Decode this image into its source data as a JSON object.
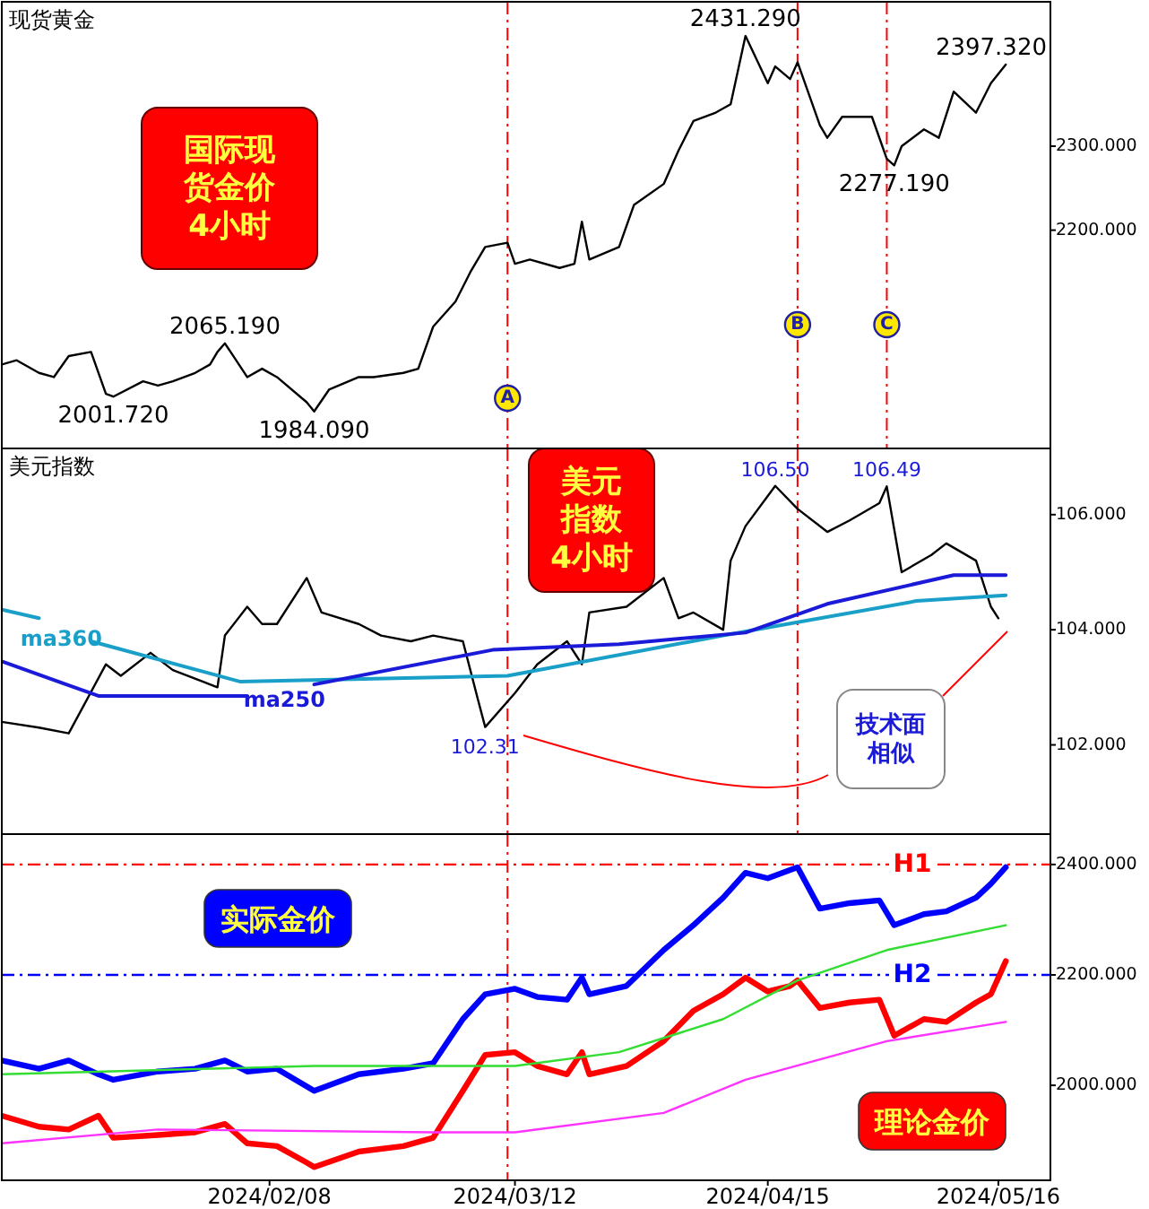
{
  "chart_data": [
    {
      "type": "line",
      "title": "现货黄金",
      "xlim": [
        "2024-01-03",
        "2024-05-23"
      ],
      "ylim": [
        1940,
        2472
      ],
      "yticks": [
        {
          "value": 2200,
          "label": "2200.000"
        },
        {
          "value": 2300,
          "label": "2300.000"
        }
      ],
      "tick_labels": "y",
      "grid": false,
      "legend": false,
      "marker": "none",
      "series": [
        {
          "color": "#000000",
          "x": [
            "2024-01-03",
            "2024-01-05",
            "2024-01-08",
            "2024-01-10",
            "2024-01-12",
            "2024-01-15",
            "2024-01-17",
            "2024-01-18",
            "2024-01-22",
            "2024-01-24",
            "2024-01-26",
            "2024-01-29",
            "2024-01-31",
            "2024-02-01",
            "2024-02-02",
            "2024-02-05",
            "2024-02-07",
            "2024-02-09",
            "2024-02-13",
            "2024-02-14",
            "2024-02-16",
            "2024-02-20",
            "2024-02-22",
            "2024-02-26",
            "2024-02-28",
            "2024-03-01",
            "2024-03-04",
            "2024-03-06",
            "2024-03-08",
            "2024-03-11",
            "2024-03-12",
            "2024-03-14",
            "2024-03-18",
            "2024-03-20",
            "2024-03-21",
            "2024-03-22",
            "2024-03-26",
            "2024-03-28",
            "2024-04-01",
            "2024-04-03",
            "2024-04-05",
            "2024-04-08",
            "2024-04-10",
            "2024-04-12",
            "2024-04-15",
            "2024-04-16",
            "2024-04-18",
            "2024-04-19",
            "2024-04-22",
            "2024-04-23",
            "2024-04-25",
            "2024-04-29",
            "2024-05-01",
            "2024-05-02",
            "2024-05-03",
            "2024-05-06",
            "2024-05-08",
            "2024-05-10",
            "2024-05-13",
            "2024-05-15",
            "2024-05-17"
          ],
          "values": [
            2040,
            2045,
            2030,
            2025,
            2050,
            2055,
            2005,
            2001.72,
            2020,
            2015,
            2020,
            2030,
            2040,
            2055,
            2065.19,
            2025,
            2035,
            2025,
            1995,
            1984.09,
            2010,
            2025,
            2025,
            2030,
            2035,
            2085,
            2115,
            2150,
            2180,
            2185,
            2160,
            2165,
            2155,
            2160,
            2210,
            2165,
            2180,
            2230,
            2255,
            2295,
            2330,
            2340,
            2350,
            2431.29,
            2375,
            2395,
            2380,
            2400,
            2325,
            2310,
            2335,
            2335,
            2285,
            2277.19,
            2300,
            2320,
            2310,
            2365,
            2340,
            2375,
            2397.32
          ]
        }
      ],
      "annotations": [
        "国际现货金价4小时",
        {
          "text": "2001.720",
          "x": "2024-01-18",
          "y": 2001.72
        },
        {
          "text": "2065.190",
          "x": "2024-02-02",
          "y": 2065.19
        },
        {
          "text": "1984.090",
          "x": "2024-02-14",
          "y": 1984.09
        },
        {
          "text": "2431.290",
          "x": "2024-04-12",
          "y": 2431.29
        },
        {
          "text": "2277.190",
          "x": "2024-05-02",
          "y": 2277.19
        },
        {
          "text": "2397.320",
          "x": "2024-05-17",
          "y": 2397.32
        }
      ],
      "ref_lines": [
        {
          "axis": "x",
          "value": "2024-03-11",
          "label": "A",
          "color": "#ff0000",
          "line_style": "dashed"
        },
        {
          "axis": "x",
          "value": "2024-04-19",
          "label": "B",
          "color": "#ff0000",
          "line_style": "dashed"
        },
        {
          "axis": "x",
          "value": "2024-05-01",
          "label": "C",
          "color": "#ff0000",
          "line_style": "dashed"
        }
      ]
    },
    {
      "type": "line",
      "title": "美元指数",
      "xlim": [
        "2024-01-03",
        "2024-05-23"
      ],
      "ylim": [
        100.45,
        107.15
      ],
      "yticks": [
        {
          "value": 102,
          "label": "102.000"
        },
        {
          "value": 104,
          "label": "104.000"
        },
        {
          "value": 106,
          "label": "106.000"
        }
      ],
      "tick_labels": "y",
      "grid": false,
      "legend": false,
      "marker": "none",
      "series": [
        {
          "color": "#000000",
          "x": [
            "2024-01-03",
            "2024-01-08",
            "2024-01-12",
            "2024-01-17",
            "2024-01-19",
            "2024-01-23",
            "2024-01-26",
            "2024-01-30",
            "2024-02-01",
            "2024-02-02",
            "2024-02-05",
            "2024-02-07",
            "2024-02-09",
            "2024-02-13",
            "2024-02-15",
            "2024-02-20",
            "2024-02-23",
            "2024-02-27",
            "2024-03-01",
            "2024-03-05",
            "2024-03-07",
            "2024-03-08",
            "2024-03-12",
            "2024-03-15",
            "2024-03-19",
            "2024-03-21",
            "2024-03-22",
            "2024-03-27",
            "2024-04-01",
            "2024-04-03",
            "2024-04-05",
            "2024-04-09",
            "2024-04-10",
            "2024-04-12",
            "2024-04-16",
            "2024-04-19",
            "2024-04-23",
            "2024-04-26",
            "2024-04-30",
            "2024-05-01",
            "2024-05-03",
            "2024-05-07",
            "2024-05-09",
            "2024-05-13",
            "2024-05-15",
            "2024-05-16"
          ],
          "values": [
            102.4,
            102.3,
            102.2,
            103.4,
            103.2,
            103.6,
            103.3,
            103.1,
            103.0,
            103.9,
            104.4,
            104.1,
            104.1,
            104.9,
            104.3,
            104.1,
            103.9,
            103.8,
            103.9,
            103.8,
            102.8,
            102.31,
            102.9,
            103.4,
            103.8,
            103.4,
            104.3,
            104.4,
            104.9,
            104.2,
            104.3,
            104.0,
            105.2,
            105.8,
            106.5,
            106.1,
            105.7,
            105.9,
            106.2,
            106.49,
            105.0,
            105.3,
            105.5,
            105.2,
            104.4,
            104.2
          ]
        },
        {
          "name": "ma360",
          "color": "#1aa0c8",
          "x": [
            "2024-01-03",
            "2024-01-08",
            "2024-01-11",
            "2024-01-15",
            "2024-02-04",
            "2024-03-11",
            "2024-04-09",
            "2024-05-05",
            "2024-05-17"
          ],
          "values": [
            104.35,
            104.2,
            null,
            103.8,
            103.1,
            103.2,
            103.9,
            104.5,
            104.6
          ]
        },
        {
          "name": "ma250",
          "color": "#1a1ad8",
          "x": [
            "2024-01-03",
            "2024-01-16",
            "2024-02-05",
            "2024-02-10",
            "2024-02-14",
            "2024-03-09",
            "2024-03-26",
            "2024-04-12",
            "2024-04-23",
            "2024-05-10",
            "2024-05-17"
          ],
          "values": [
            103.45,
            102.85,
            102.85,
            null,
            103.05,
            103.65,
            103.75,
            103.95,
            104.45,
            104.95,
            104.95
          ]
        }
      ],
      "annotations": [
        "美元指数4小时",
        "技术面相似",
        {
          "text": "106.50",
          "x": "2024-04-16",
          "y": 106.5
        },
        {
          "text": "106.49",
          "x": "2024-05-01",
          "y": 106.49
        },
        {
          "text": "102.31",
          "x": "2024-03-08",
          "y": 102.31
        }
      ],
      "ref_lines": [
        {
          "axis": "x",
          "value": "2024-03-11",
          "color": "#ff0000",
          "line_style": "dashed"
        },
        {
          "axis": "x",
          "value": "2024-04-19",
          "color": "#ff0000",
          "line_style": "dashed"
        }
      ]
    },
    {
      "type": "line",
      "xlim": [
        "2024-01-03",
        "2024-05-23"
      ],
      "ylim": [
        1828,
        2455
      ],
      "yticks": [
        {
          "value": 2000,
          "label": "2000.000"
        },
        {
          "value": 2200,
          "label": "2200.000"
        },
        {
          "value": 2400,
          "label": "2400.000"
        }
      ],
      "xticks": [
        {
          "value": "2024-02-08",
          "label": "2024/02/08"
        },
        {
          "value": "2024-03-12",
          "label": "2024/03/12"
        },
        {
          "value": "2024-04-15",
          "label": "2024/04/15"
        },
        {
          "value": "2024-05-16",
          "label": "2024/05/16"
        }
      ],
      "grid": false,
      "legend": false,
      "marker": "none",
      "series": [
        {
          "name": "实际金价",
          "color": "#0000ff",
          "x": [
            "2024-01-03",
            "2024-01-08",
            "2024-01-12",
            "2024-01-16",
            "2024-01-18",
            "2024-01-24",
            "2024-01-29",
            "2024-02-02",
            "2024-02-05",
            "2024-02-09",
            "2024-02-14",
            "2024-02-20",
            "2024-02-26",
            "2024-03-01",
            "2024-03-05",
            "2024-03-08",
            "2024-03-12",
            "2024-03-15",
            "2024-03-19",
            "2024-03-21",
            "2024-03-22",
            "2024-03-27",
            "2024-04-01",
            "2024-04-05",
            "2024-04-09",
            "2024-04-12",
            "2024-04-15",
            "2024-04-18",
            "2024-04-19",
            "2024-04-22",
            "2024-04-26",
            "2024-04-30",
            "2024-05-02",
            "2024-05-06",
            "2024-05-09",
            "2024-05-13",
            "2024-05-15",
            "2024-05-17"
          ],
          "values": [
            2045,
            2030,
            2045,
            2020,
            2010,
            2025,
            2030,
            2045,
            2025,
            2030,
            1990,
            2020,
            2030,
            2040,
            2120,
            2165,
            2175,
            2160,
            2155,
            2195,
            2165,
            2180,
            2245,
            2290,
            2340,
            2385,
            2375,
            2390,
            2395,
            2320,
            2330,
            2335,
            2290,
            2310,
            2315,
            2340,
            2365,
            2395
          ]
        },
        {
          "name": "理论金价",
          "color": "#ff0000",
          "x": [
            "2024-01-03",
            "2024-01-08",
            "2024-01-12",
            "2024-01-16",
            "2024-01-18",
            "2024-01-24",
            "2024-01-29",
            "2024-02-02",
            "2024-02-05",
            "2024-02-09",
            "2024-02-13",
            "2024-02-14",
            "2024-02-20",
            "2024-02-26",
            "2024-03-01",
            "2024-03-05",
            "2024-03-08",
            "2024-03-12",
            "2024-03-15",
            "2024-03-19",
            "2024-03-21",
            "2024-03-22",
            "2024-03-27",
            "2024-04-01",
            "2024-04-05",
            "2024-04-09",
            "2024-04-12",
            "2024-04-15",
            "2024-04-18",
            "2024-04-19",
            "2024-04-22",
            "2024-04-26",
            "2024-04-30",
            "2024-05-02",
            "2024-05-06",
            "2024-05-09",
            "2024-05-13",
            "2024-05-15",
            "2024-05-17"
          ],
          "values": [
            1945,
            1925,
            1920,
            1945,
            1905,
            1910,
            1915,
            1930,
            1895,
            1890,
            1860,
            1852,
            1880,
            1890,
            1905,
            1990,
            2055,
            2060,
            2035,
            2020,
            2060,
            2020,
            2035,
            2080,
            2135,
            2165,
            2195,
            2170,
            2180,
            2190,
            2140,
            2150,
            2155,
            2090,
            2120,
            2115,
            2150,
            2165,
            2225
          ]
        },
        {
          "color": "#33dd33",
          "x": [
            "2024-01-03",
            "2024-02-14",
            "2024-03-12",
            "2024-03-26",
            "2024-04-09",
            "2024-04-19",
            "2024-05-01",
            "2024-05-17"
          ],
          "values": [
            2020,
            2035,
            2035,
            2060,
            2120,
            2190,
            2245,
            2290
          ]
        },
        {
          "color": "#ff33ff",
          "x": [
            "2024-01-03",
            "2024-01-24",
            "2024-03-01",
            "2024-03-12",
            "2024-04-01",
            "2024-04-12",
            "2024-05-01",
            "2024-05-17"
          ],
          "values": [
            1895,
            1920,
            1915,
            1915,
            1950,
            2010,
            2080,
            2115
          ]
        }
      ],
      "ref_lines": [
        {
          "axis": "x",
          "value": "2024-03-11",
          "color": "#ff0000",
          "line_style": "dashed"
        },
        {
          "axis": "y",
          "value": 2400,
          "label": "H1",
          "color": "#ff0000",
          "line_style": "dashed"
        },
        {
          "axis": "y",
          "value": 2200,
          "label": "H2",
          "color": "#0000ff",
          "line_style": "dashed"
        }
      ]
    }
  ]
}
